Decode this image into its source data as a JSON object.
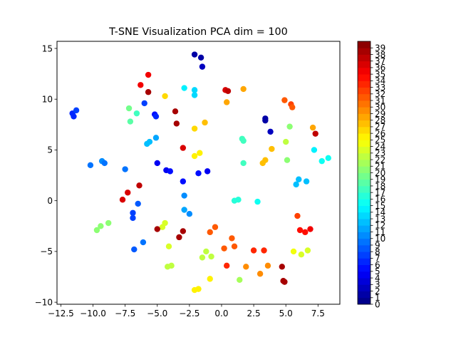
{
  "chart_data": {
    "type": "scatter",
    "title": "T-SNE Visualization PCA dim = 100",
    "xlabel": "",
    "ylabel": "",
    "xlim": [
      -12.8,
      9.2
    ],
    "ylim": [
      -10.2,
      15.7
    ],
    "x_ticks": [
      -12.5,
      -10.0,
      -7.5,
      -5.0,
      -2.5,
      0.0,
      2.5,
      5.0,
      7.5
    ],
    "x_tick_labels": [
      "−12.5",
      "−10.0",
      "−7.5",
      "−5.0",
      "−2.5",
      "0.0",
      "2.5",
      "5.0",
      "7.5"
    ],
    "y_ticks": [
      -10,
      -5,
      0,
      5,
      10,
      15
    ],
    "y_tick_labels": [
      "−10",
      "−5",
      "0",
      "5",
      "10",
      "15"
    ],
    "grid": false,
    "colormap": "jet",
    "colorbar": {
      "min": 0,
      "max": 40,
      "ticks": [
        0,
        1,
        2,
        3,
        4,
        5,
        6,
        7,
        8,
        9,
        10,
        11,
        12,
        13,
        14,
        15,
        16,
        17,
        18,
        19,
        20,
        21,
        22,
        23,
        24,
        25,
        26,
        27,
        28,
        29,
        30,
        31,
        32,
        33,
        34,
        35,
        36,
        37,
        38,
        39
      ],
      "tick_labels": [
        "0",
        "1",
        "2",
        "3",
        "4",
        "5",
        "6",
        "7",
        "8",
        "9",
        "10",
        "11",
        "12",
        "13",
        "14",
        "15",
        "16",
        "17",
        "18",
        "19",
        "20",
        "21",
        "22",
        "23",
        "24",
        "25",
        "26",
        "27",
        "28",
        "29",
        "30",
        "31",
        "32",
        "33",
        "34",
        "35",
        "36",
        "37",
        "38",
        "39"
      ]
    },
    "points": [
      {
        "x": -2.1,
        "y": 14.4,
        "c": 1
      },
      {
        "x": -1.6,
        "y": 14.1,
        "c": 1
      },
      {
        "x": -1.5,
        "y": 13.2,
        "c": 2
      },
      {
        "x": -5.7,
        "y": 12.4,
        "c": 35
      },
      {
        "x": -6.3,
        "y": 11.4,
        "c": 35
      },
      {
        "x": -5.7,
        "y": 10.7,
        "c": 38
      },
      {
        "x": -2.9,
        "y": 11.1,
        "c": 14
      },
      {
        "x": -2.1,
        "y": 10.9,
        "c": 13
      },
      {
        "x": -2.1,
        "y": 10.4,
        "c": 13
      },
      {
        "x": -4.4,
        "y": 10.3,
        "c": 26
      },
      {
        "x": 0.3,
        "y": 10.9,
        "c": 36
      },
      {
        "x": 0.5,
        "y": 10.8,
        "c": 37
      },
      {
        "x": 1.7,
        "y": 11.0,
        "c": 28
      },
      {
        "x": 0.4,
        "y": 9.7,
        "c": 28
      },
      {
        "x": -6.0,
        "y": 9.6,
        "c": 7
      },
      {
        "x": -7.2,
        "y": 9.1,
        "c": 19
      },
      {
        "x": -6.6,
        "y": 8.6,
        "c": 17
      },
      {
        "x": -5.2,
        "y": 8.5,
        "c": 5
      },
      {
        "x": -5.1,
        "y": 8.3,
        "c": 6
      },
      {
        "x": -3.6,
        "y": 8.8,
        "c": 38
      },
      {
        "x": -11.6,
        "y": 8.6,
        "c": 6
      },
      {
        "x": -11.3,
        "y": 8.9,
        "c": 7
      },
      {
        "x": -11.5,
        "y": 8.3,
        "c": 6
      },
      {
        "x": 3.4,
        "y": 7.9,
        "c": 1
      },
      {
        "x": 3.4,
        "y": 8.1,
        "c": 1
      },
      {
        "x": 3.8,
        "y": 6.8,
        "c": 2
      },
      {
        "x": 4.9,
        "y": 9.9,
        "c": 31
      },
      {
        "x": 5.4,
        "y": 9.5,
        "c": 32
      },
      {
        "x": 5.5,
        "y": 9.2,
        "c": 31
      },
      {
        "x": -7.1,
        "y": 7.8,
        "c": 18
      },
      {
        "x": -3.5,
        "y": 7.6,
        "c": 38
      },
      {
        "x": -1.3,
        "y": 7.7,
        "c": 27
      },
      {
        "x": -2.1,
        "y": 7.1,
        "c": 26
      },
      {
        "x": 5.3,
        "y": 7.3,
        "c": 20
      },
      {
        "x": 7.1,
        "y": 7.2,
        "c": 28
      },
      {
        "x": 7.3,
        "y": 6.6,
        "c": 37
      },
      {
        "x": -5.1,
        "y": 6.2,
        "c": 11
      },
      {
        "x": -5.6,
        "y": 5.8,
        "c": 12
      },
      {
        "x": -5.8,
        "y": 5.6,
        "c": 12
      },
      {
        "x": 1.6,
        "y": 6.1,
        "c": 17
      },
      {
        "x": 1.7,
        "y": 5.9,
        "c": 17
      },
      {
        "x": 5.0,
        "y": 5.8,
        "c": 22
      },
      {
        "x": -3.0,
        "y": 5.2,
        "c": 36
      },
      {
        "x": 3.9,
        "y": 5.1,
        "c": 27
      },
      {
        "x": 7.2,
        "y": 5.0,
        "c": 14
      },
      {
        "x": -1.7,
        "y": 4.7,
        "c": 25
      },
      {
        "x": -2.1,
        "y": 4.4,
        "c": 25
      },
      {
        "x": 3.4,
        "y": 4.0,
        "c": 27
      },
      {
        "x": 3.2,
        "y": 3.7,
        "c": 27
      },
      {
        "x": 5.1,
        "y": 4.0,
        "c": 20
      },
      {
        "x": 8.3,
        "y": 4.2,
        "c": 15
      },
      {
        "x": 7.8,
        "y": 3.9,
        "c": 15
      },
      {
        "x": 1.7,
        "y": 3.7,
        "c": 17
      },
      {
        "x": -9.3,
        "y": 3.9,
        "c": 10
      },
      {
        "x": -9.1,
        "y": 3.7,
        "c": 9
      },
      {
        "x": -10.2,
        "y": 3.5,
        "c": 9
      },
      {
        "x": -5.0,
        "y": 3.7,
        "c": 4
      },
      {
        "x": -4.3,
        "y": 3.0,
        "c": 4
      },
      {
        "x": -4.0,
        "y": 2.9,
        "c": 5
      },
      {
        "x": -1.8,
        "y": 2.7,
        "c": 5
      },
      {
        "x": -1.1,
        "y": 2.9,
        "c": 4
      },
      {
        "x": -7.5,
        "y": 3.1,
        "c": 9
      },
      {
        "x": -3.0,
        "y": 1.9,
        "c": 5
      },
      {
        "x": 6.0,
        "y": 2.1,
        "c": 12
      },
      {
        "x": 6.6,
        "y": 1.9,
        "c": 12
      },
      {
        "x": 5.8,
        "y": 1.6,
        "c": 12
      },
      {
        "x": -6.4,
        "y": 1.5,
        "c": 37
      },
      {
        "x": -7.3,
        "y": 0.8,
        "c": 36
      },
      {
        "x": -7.7,
        "y": 0.1,
        "c": 36
      },
      {
        "x": -2.9,
        "y": 0.5,
        "c": 10
      },
      {
        "x": 1.0,
        "y": 0.0,
        "c": 16
      },
      {
        "x": 1.3,
        "y": 0.1,
        "c": 16
      },
      {
        "x": 2.8,
        "y": -0.1,
        "c": 15
      },
      {
        "x": -6.5,
        "y": -0.3,
        "c": 8
      },
      {
        "x": -6.9,
        "y": -1.2,
        "c": 7
      },
      {
        "x": -6.9,
        "y": -1.7,
        "c": 7
      },
      {
        "x": -2.9,
        "y": -0.9,
        "c": 11
      },
      {
        "x": -2.5,
        "y": -1.3,
        "c": 10
      },
      {
        "x": 5.9,
        "y": -1.5,
        "c": 32
      },
      {
        "x": -9.7,
        "y": -2.9,
        "c": 20
      },
      {
        "x": -9.4,
        "y": -2.5,
        "c": 20
      },
      {
        "x": -8.8,
        "y": -2.2,
        "c": 20
      },
      {
        "x": -4.4,
        "y": -2.2,
        "c": 23
      },
      {
        "x": -4.6,
        "y": -2.6,
        "c": 23
      },
      {
        "x": -5.0,
        "y": -2.8,
        "c": 38
      },
      {
        "x": -3.0,
        "y": -3.0,
        "c": 38
      },
      {
        "x": -3.3,
        "y": -3.6,
        "c": 38
      },
      {
        "x": -0.5,
        "y": -2.6,
        "c": 31
      },
      {
        "x": -0.9,
        "y": -3.1,
        "c": 31
      },
      {
        "x": 6.1,
        "y": -2.9,
        "c": 34
      },
      {
        "x": 6.5,
        "y": -3.1,
        "c": 34
      },
      {
        "x": 6.9,
        "y": -2.8,
        "c": 35
      },
      {
        "x": -6.1,
        "y": -4.1,
        "c": 9
      },
      {
        "x": -6.8,
        "y": -4.8,
        "c": 8
      },
      {
        "x": -4.1,
        "y": -4.5,
        "c": 23
      },
      {
        "x": 0.8,
        "y": -3.7,
        "c": 31
      },
      {
        "x": 0.2,
        "y": -4.7,
        "c": 31
      },
      {
        "x": 1.0,
        "y": -4.5,
        "c": 31
      },
      {
        "x": 2.5,
        "y": -4.9,
        "c": 33
      },
      {
        "x": 3.3,
        "y": -4.9,
        "c": 33
      },
      {
        "x": -1.2,
        "y": -5.0,
        "c": 22
      },
      {
        "x": -0.8,
        "y": -5.5,
        "c": 22
      },
      {
        "x": -1.5,
        "y": -5.6,
        "c": 22
      },
      {
        "x": 5.6,
        "y": -5.0,
        "c": 24
      },
      {
        "x": 6.2,
        "y": -5.3,
        "c": 23
      },
      {
        "x": 6.7,
        "y": -4.9,
        "c": 23
      },
      {
        "x": 0.4,
        "y": -6.4,
        "c": 33
      },
      {
        "x": 1.9,
        "y": -6.5,
        "c": 29
      },
      {
        "x": 3.6,
        "y": -6.4,
        "c": 29
      },
      {
        "x": 4.7,
        "y": -6.5,
        "c": 38
      },
      {
        "x": -4.2,
        "y": -6.5,
        "c": 22
      },
      {
        "x": -3.9,
        "y": -6.4,
        "c": 22
      },
      {
        "x": 3.0,
        "y": -7.2,
        "c": 29
      },
      {
        "x": -0.9,
        "y": -7.7,
        "c": 25
      },
      {
        "x": 1.4,
        "y": -7.8,
        "c": 21
      },
      {
        "x": 4.8,
        "y": -7.9,
        "c": 38
      },
      {
        "x": 4.9,
        "y": -8.0,
        "c": 38
      },
      {
        "x": -2.1,
        "y": -8.8,
        "c": 25
      },
      {
        "x": -1.8,
        "y": -8.7,
        "c": 25
      }
    ]
  }
}
